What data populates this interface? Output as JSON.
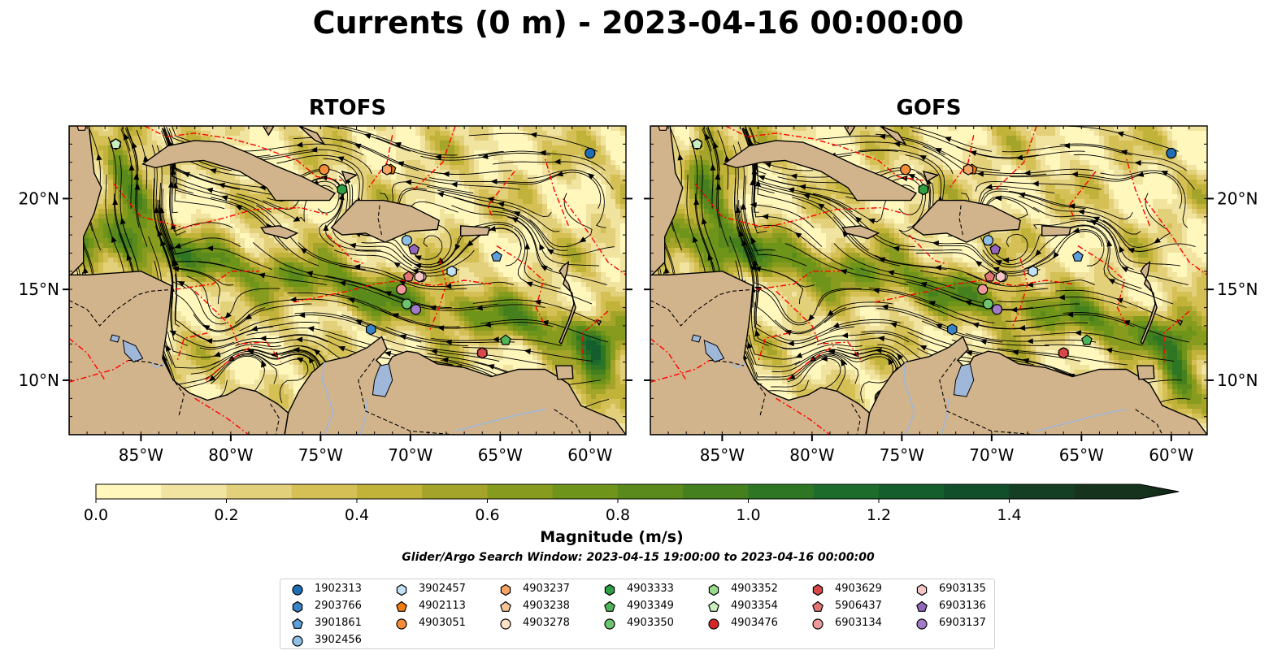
{
  "title": "Currents (0 m) - 2023-04-16 00:00:00",
  "panels": [
    {
      "id": "rtofs",
      "title": "RTOFS"
    },
    {
      "id": "gofs",
      "title": "GOFS"
    }
  ],
  "map": {
    "lon_range": [
      -89,
      -58
    ],
    "lat_range": [
      7,
      24
    ],
    "lon_ticks": [
      "85°W",
      "80°W",
      "75°W",
      "70°W",
      "65°W",
      "60°W"
    ],
    "lat_ticks": [
      "20°N",
      "15°N",
      "10°N"
    ],
    "colors": {
      "land": "#d2b48c",
      "lakes": "#9fb7d9",
      "eez": "#ff0000",
      "streamlines": "#000000"
    }
  },
  "colorbar": {
    "label": "Magnitude (m/s)",
    "ticks": [
      "0.0",
      "0.2",
      "0.4",
      "0.6",
      "0.8",
      "1.0",
      "1.2",
      "1.4"
    ],
    "range": [
      0,
      1.6
    ],
    "extend": "max",
    "colors": [
      "#fff7bc",
      "#f1e3a0",
      "#e3d07a",
      "#d4c055",
      "#c1b23a",
      "#a4a42a",
      "#879c1e",
      "#6e941a",
      "#5b8a1c",
      "#45801f",
      "#2e7624",
      "#1d6c2c",
      "#135e2c",
      "#114e2a",
      "#143f24",
      "#16331e"
    ]
  },
  "search_window": "Glider/Argo Search Window: 2023-04-15 19:00:00 to 2023-04-16 00:00:00",
  "legend": [
    {
      "id": "1902313",
      "marker": "circle",
      "color": "#1f6eb4"
    },
    {
      "id": "2903766",
      "marker": "hexagon",
      "color": "#3a84c6"
    },
    {
      "id": "3901861",
      "marker": "pentagon",
      "color": "#5d9fd9"
    },
    {
      "id": "3902456",
      "marker": "circle",
      "color": "#8fc0e8"
    },
    {
      "id": "3902457",
      "marker": "hexagon",
      "color": "#c3e1f5"
    },
    {
      "id": "4902113",
      "marker": "pentagon",
      "color": "#f07c12"
    },
    {
      "id": "4903051",
      "marker": "circle",
      "color": "#f48c3a"
    },
    {
      "id": "4903237",
      "marker": "hexagon",
      "color": "#f6a466"
    },
    {
      "id": "4903238",
      "marker": "pentagon",
      "color": "#f9c496"
    },
    {
      "id": "4903278",
      "marker": "circle",
      "color": "#fde0c8"
    },
    {
      "id": "4903333",
      "marker": "hexagon",
      "color": "#2ea043"
    },
    {
      "id": "4903349",
      "marker": "pentagon",
      "color": "#4eb55a"
    },
    {
      "id": "4903350",
      "marker": "circle",
      "color": "#6cc56c"
    },
    {
      "id": "4903352",
      "marker": "hexagon",
      "color": "#98db8c"
    },
    {
      "id": "4903354",
      "marker": "pentagon",
      "color": "#c8efbd"
    },
    {
      "id": "4903476",
      "marker": "circle",
      "color": "#d62728"
    },
    {
      "id": "4903629",
      "marker": "hexagon",
      "color": "#d94848"
    },
    {
      "id": "5906437",
      "marker": "pentagon",
      "color": "#e37474"
    },
    {
      "id": "6903134",
      "marker": "circle",
      "color": "#ef9a9a"
    },
    {
      "id": "6903135",
      "marker": "hexagon",
      "color": "#f7c7c7"
    },
    {
      "id": "6903136",
      "marker": "pentagon",
      "color": "#9467bd"
    },
    {
      "id": "6903137",
      "marker": "circle",
      "color": "#a37cc9"
    }
  ],
  "floats": [
    {
      "id": "1902313",
      "lon": -60.0,
      "lat": 22.5
    },
    {
      "id": "2903766",
      "lon": -72.2,
      "lat": 12.8
    },
    {
      "id": "3901861",
      "lon": -65.2,
      "lat": 16.8
    },
    {
      "id": "3902456",
      "lon": -70.2,
      "lat": 17.7
    },
    {
      "id": "3902457",
      "lon": -67.7,
      "lat": 16.0
    },
    {
      "id": "4902113",
      "lon": -71.1,
      "lat": 21.6
    },
    {
      "id": "4903051",
      "lon": -74.8,
      "lat": 21.6
    },
    {
      "id": "4903237",
      "lon": -71.3,
      "lat": 21.6
    },
    {
      "id": "4903238",
      "lon": -88.3,
      "lat": 24.0
    },
    {
      "id": "4903278",
      "lon": -69.4,
      "lat": 15.7
    },
    {
      "id": "4903333",
      "lon": -73.8,
      "lat": 20.5
    },
    {
      "id": "4903349",
      "lon": -64.7,
      "lat": 12.2
    },
    {
      "id": "4903350",
      "lon": -70.2,
      "lat": 14.2
    },
    {
      "id": "4903352",
      "lon": -86.4,
      "lat": 23.0
    },
    {
      "id": "4903354",
      "lon": -86.4,
      "lat": 23.0
    },
    {
      "id": "4903476",
      "lon": -66.0,
      "lat": 11.5
    },
    {
      "id": "4903629",
      "lon": -66.0,
      "lat": 11.5
    },
    {
      "id": "5906437",
      "lon": -70.1,
      "lat": 15.7
    },
    {
      "id": "6903134",
      "lon": -70.5,
      "lat": 15.0
    },
    {
      "id": "6903135",
      "lon": -69.5,
      "lat": 15.7
    },
    {
      "id": "6903136",
      "lon": -69.8,
      "lat": 17.2
    },
    {
      "id": "6903137",
      "lon": -69.7,
      "lat": 13.9
    }
  ]
}
